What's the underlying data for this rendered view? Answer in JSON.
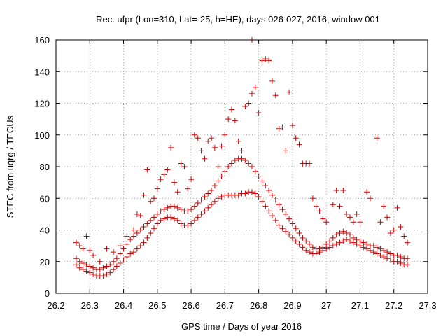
{
  "chart_data": {
    "type": "scatter",
    "title": "Rec. ufpr (Lon=310, Lat=-25, h=HE), days 026-027, 2016, window 001",
    "xlabel": "GPS time / Days of year 2016",
    "ylabel": "STEC from uqrg / TECUs",
    "xlim": [
      26.2,
      27.3
    ],
    "ylim": [
      0,
      160
    ],
    "xticks": [
      26.2,
      26.3,
      26.4,
      26.5,
      26.6,
      26.7,
      26.8,
      26.9,
      27,
      27.1,
      27.2,
      27.3
    ],
    "xtick_labels": [
      "26.2",
      "26.3",
      "26.4",
      "26.5",
      "26.6",
      "26.7",
      "26.8",
      "26.9",
      "27",
      "27.1",
      "27.2",
      "27.3"
    ],
    "yticks": [
      0,
      20,
      40,
      60,
      80,
      100,
      120,
      140,
      160
    ],
    "ytick_labels": [
      "0",
      "20",
      "40",
      "60",
      "80",
      "100",
      "120",
      "140",
      "160"
    ],
    "grid": true,
    "marker": "+",
    "color": "#cc0000",
    "series": [
      {
        "name": "STEC",
        "points": [
          [
            26.26,
            18
          ],
          [
            26.27,
            16
          ],
          [
            26.28,
            15
          ],
          [
            26.29,
            14
          ],
          [
            26.3,
            13
          ],
          [
            26.31,
            12
          ],
          [
            26.32,
            11
          ],
          [
            26.33,
            11
          ],
          [
            26.34,
            11
          ],
          [
            26.35,
            12
          ],
          [
            26.36,
            13
          ],
          [
            26.37,
            15
          ],
          [
            26.38,
            17
          ],
          [
            26.39,
            19
          ],
          [
            26.4,
            21
          ],
          [
            26.41,
            23
          ],
          [
            26.42,
            25
          ],
          [
            26.43,
            26
          ],
          [
            26.44,
            28
          ],
          [
            26.45,
            30
          ],
          [
            26.46,
            32
          ],
          [
            26.47,
            35
          ],
          [
            26.48,
            38
          ],
          [
            26.49,
            41
          ],
          [
            26.5,
            44
          ],
          [
            26.51,
            46
          ],
          [
            26.52,
            47
          ],
          [
            26.53,
            48
          ],
          [
            26.54,
            48
          ],
          [
            26.55,
            47
          ],
          [
            26.56,
            46
          ],
          [
            26.57,
            44
          ],
          [
            26.58,
            43
          ],
          [
            26.59,
            43
          ],
          [
            26.6,
            44
          ],
          [
            26.61,
            46
          ],
          [
            26.62,
            48
          ],
          [
            26.63,
            50
          ],
          [
            26.64,
            52
          ],
          [
            26.65,
            54
          ],
          [
            26.66,
            56
          ],
          [
            26.67,
            58
          ],
          [
            26.68,
            60
          ],
          [
            26.69,
            61
          ],
          [
            26.7,
            62
          ],
          [
            26.71,
            62
          ],
          [
            26.72,
            62
          ],
          [
            26.73,
            62
          ],
          [
            26.74,
            62
          ],
          [
            26.75,
            63
          ],
          [
            26.76,
            63
          ],
          [
            26.77,
            64
          ],
          [
            26.78,
            64
          ],
          [
            26.79,
            63
          ],
          [
            26.8,
            61
          ],
          [
            26.81,
            58
          ],
          [
            26.82,
            55
          ],
          [
            26.83,
            52
          ],
          [
            26.84,
            49
          ],
          [
            26.85,
            46
          ],
          [
            26.86,
            43
          ],
          [
            26.87,
            41
          ],
          [
            26.88,
            39
          ],
          [
            26.89,
            37
          ],
          [
            26.9,
            35
          ],
          [
            26.91,
            33
          ],
          [
            26.92,
            31
          ],
          [
            26.93,
            29
          ],
          [
            26.94,
            27
          ],
          [
            26.95,
            26
          ],
          [
            26.96,
            25
          ],
          [
            26.97,
            25
          ],
          [
            26.98,
            26
          ],
          [
            26.99,
            27
          ],
          [
            27.0,
            28
          ],
          [
            27.01,
            29
          ],
          [
            27.02,
            30
          ],
          [
            27.03,
            31
          ],
          [
            27.04,
            32
          ],
          [
            27.05,
            33
          ],
          [
            27.06,
            34
          ],
          [
            27.07,
            33
          ],
          [
            27.08,
            32
          ],
          [
            27.09,
            31
          ],
          [
            27.1,
            30
          ],
          [
            27.11,
            29
          ],
          [
            27.12,
            28
          ],
          [
            27.13,
            27
          ],
          [
            27.14,
            26
          ],
          [
            27.15,
            25
          ],
          [
            27.16,
            24
          ],
          [
            27.17,
            23
          ],
          [
            27.18,
            22
          ],
          [
            27.19,
            21
          ],
          [
            27.2,
            20
          ],
          [
            27.21,
            20
          ],
          [
            27.22,
            19
          ],
          [
            27.23,
            18
          ],
          [
            27.24,
            18
          ],
          [
            26.26,
            22
          ],
          [
            26.27,
            20
          ],
          [
            26.28,
            19
          ],
          [
            26.29,
            18
          ],
          [
            26.3,
            17
          ],
          [
            26.31,
            16
          ],
          [
            26.32,
            15
          ],
          [
            26.33,
            15
          ],
          [
            26.34,
            16
          ],
          [
            26.35,
            17
          ],
          [
            26.36,
            18
          ],
          [
            26.37,
            20
          ],
          [
            26.38,
            22
          ],
          [
            26.39,
            25
          ],
          [
            26.4,
            28
          ],
          [
            26.41,
            31
          ],
          [
            26.42,
            34
          ],
          [
            26.43,
            36
          ],
          [
            26.44,
            38
          ],
          [
            26.45,
            40
          ],
          [
            26.46,
            42
          ],
          [
            26.47,
            44
          ],
          [
            26.48,
            46
          ],
          [
            26.49,
            48
          ],
          [
            26.5,
            50
          ],
          [
            26.51,
            52
          ],
          [
            26.52,
            53
          ],
          [
            26.53,
            54
          ],
          [
            26.54,
            55
          ],
          [
            26.55,
            55
          ],
          [
            26.56,
            54
          ],
          [
            26.57,
            53
          ],
          [
            26.58,
            52
          ],
          [
            26.59,
            52
          ],
          [
            26.6,
            53
          ],
          [
            26.61,
            55
          ],
          [
            26.62,
            57
          ],
          [
            26.63,
            59
          ],
          [
            26.64,
            61
          ],
          [
            26.65,
            63
          ],
          [
            26.66,
            65
          ],
          [
            26.67,
            68
          ],
          [
            26.68,
            71
          ],
          [
            26.69,
            74
          ],
          [
            26.7,
            77
          ],
          [
            26.71,
            80
          ],
          [
            26.72,
            82
          ],
          [
            26.73,
            84
          ],
          [
            26.74,
            85
          ],
          [
            26.75,
            85
          ],
          [
            26.76,
            84
          ],
          [
            26.77,
            82
          ],
          [
            26.78,
            80
          ],
          [
            26.79,
            77
          ],
          [
            26.8,
            74
          ],
          [
            26.81,
            71
          ],
          [
            26.82,
            68
          ],
          [
            26.83,
            65
          ],
          [
            26.84,
            62
          ],
          [
            26.85,
            59
          ],
          [
            26.86,
            56
          ],
          [
            26.87,
            53
          ],
          [
            26.88,
            50
          ],
          [
            26.89,
            47
          ],
          [
            26.9,
            44
          ],
          [
            26.91,
            41
          ],
          [
            26.92,
            38
          ],
          [
            26.93,
            35
          ],
          [
            26.94,
            33
          ],
          [
            26.95,
            31
          ],
          [
            26.96,
            29
          ],
          [
            26.97,
            28
          ],
          [
            26.98,
            28
          ],
          [
            26.99,
            29
          ],
          [
            27.0,
            31
          ],
          [
            27.01,
            33
          ],
          [
            27.02,
            35
          ],
          [
            27.03,
            37
          ],
          [
            27.04,
            38
          ],
          [
            27.05,
            39
          ],
          [
            27.06,
            38
          ],
          [
            27.07,
            37
          ],
          [
            27.08,
            35
          ],
          [
            27.09,
            34
          ],
          [
            27.1,
            33
          ],
          [
            27.11,
            32
          ],
          [
            27.12,
            31
          ],
          [
            27.13,
            30
          ],
          [
            27.14,
            30
          ],
          [
            27.15,
            29
          ],
          [
            27.16,
            28
          ],
          [
            27.17,
            27
          ],
          [
            27.18,
            26
          ],
          [
            27.19,
            25
          ],
          [
            27.2,
            24
          ],
          [
            27.21,
            24
          ],
          [
            27.22,
            23
          ],
          [
            27.23,
            22
          ],
          [
            27.24,
            22
          ],
          [
            26.26,
            32
          ],
          [
            26.27,
            30
          ],
          [
            26.28,
            28
          ],
          [
            26.29,
            36
          ],
          [
            26.3,
            27
          ],
          [
            26.31,
            24
          ],
          [
            26.33,
            20
          ],
          [
            26.35,
            28
          ],
          [
            26.37,
            26
          ],
          [
            26.39,
            30
          ],
          [
            26.41,
            36
          ],
          [
            26.43,
            40
          ],
          [
            26.44,
            50
          ],
          [
            26.45,
            49
          ],
          [
            26.46,
            62
          ],
          [
            26.47,
            78
          ],
          [
            26.48,
            58
          ],
          [
            26.49,
            60
          ],
          [
            26.5,
            66
          ],
          [
            26.51,
            72
          ],
          [
            26.52,
            75
          ],
          [
            26.53,
            78
          ],
          [
            26.54,
            92
          ],
          [
            26.55,
            70
          ],
          [
            26.56,
            64
          ],
          [
            26.57,
            82
          ],
          [
            26.58,
            80
          ],
          [
            26.59,
            66
          ],
          [
            26.6,
            72
          ],
          [
            26.61,
            100
          ],
          [
            26.62,
            98
          ],
          [
            26.63,
            90
          ],
          [
            26.64,
            85
          ],
          [
            26.65,
            96
          ],
          [
            26.66,
            98
          ],
          [
            26.67,
            92
          ],
          [
            26.68,
            80
          ],
          [
            26.69,
            93
          ],
          [
            26.7,
            100
          ],
          [
            26.71,
            110
          ],
          [
            26.72,
            116
          ],
          [
            26.73,
            109
          ],
          [
            26.74,
            96
          ],
          [
            26.75,
            90
          ],
          [
            26.76,
            118
          ],
          [
            26.77,
            120
          ],
          [
            26.78,
            126
          ],
          [
            26.78,
            160
          ],
          [
            26.79,
            130
          ],
          [
            26.8,
            114
          ],
          [
            26.81,
            147
          ],
          [
            26.82,
            148
          ],
          [
            26.83,
            147
          ],
          [
            26.84,
            134
          ],
          [
            26.85,
            125
          ],
          [
            26.86,
            104
          ],
          [
            26.87,
            105
          ],
          [
            26.88,
            90
          ],
          [
            26.89,
            127
          ],
          [
            26.9,
            106
          ],
          [
            26.91,
            98
          ],
          [
            26.92,
            94
          ],
          [
            26.93,
            82
          ],
          [
            26.94,
            82
          ],
          [
            26.95,
            82
          ],
          [
            26.96,
            60
          ],
          [
            26.97,
            55
          ],
          [
            26.98,
            52
          ],
          [
            26.99,
            47
          ],
          [
            27.0,
            45
          ],
          [
            27.02,
            56
          ],
          [
            27.03,
            65
          ],
          [
            27.04,
            55
          ],
          [
            27.05,
            65
          ],
          [
            27.06,
            50
          ],
          [
            27.07,
            48
          ],
          [
            27.08,
            45
          ],
          [
            27.09,
            50
          ],
          [
            27.1,
            45
          ],
          [
            27.12,
            64
          ],
          [
            27.13,
            60
          ],
          [
            27.15,
            98
          ],
          [
            27.16,
            45
          ],
          [
            27.17,
            55
          ],
          [
            27.18,
            48
          ],
          [
            27.19,
            38
          ],
          [
            27.2,
            40
          ],
          [
            27.21,
            54
          ],
          [
            27.22,
            42
          ],
          [
            27.23,
            36
          ],
          [
            27.24,
            32
          ]
        ]
      }
    ]
  }
}
